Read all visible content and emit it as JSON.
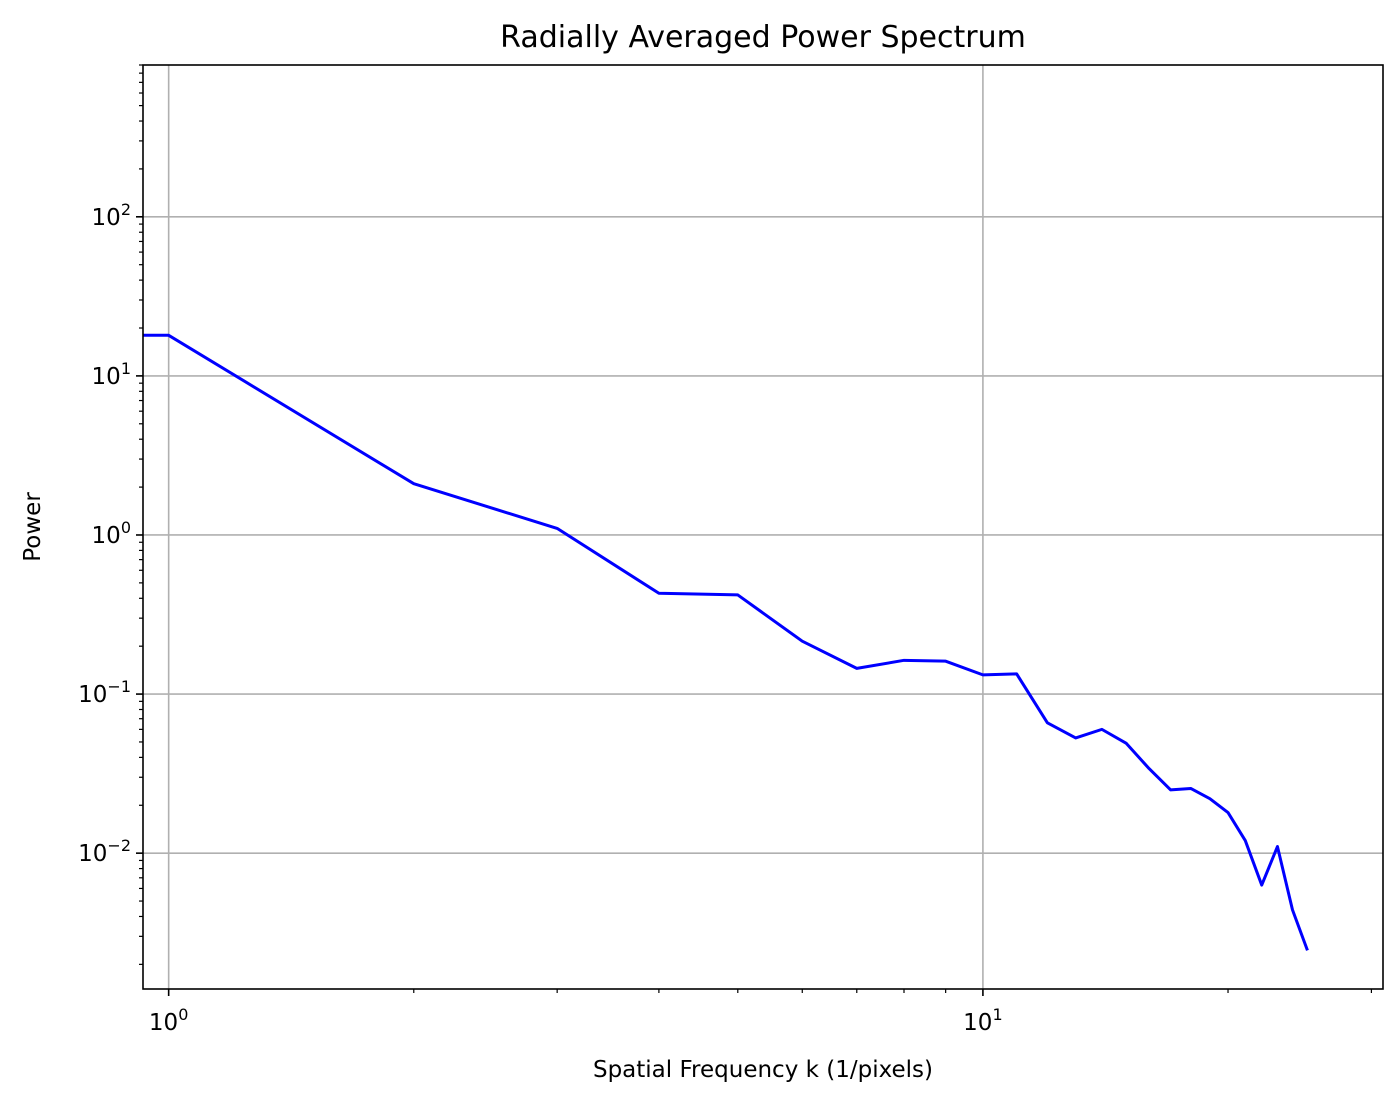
{
  "chart_data": {
    "type": "line",
    "title": "Radially Averaged Power Spectrum",
    "xlabel": "Spatial Frequency k (1/pixels)",
    "ylabel": "Power",
    "x_scale": "log",
    "y_scale": "log",
    "xlim": [
      0.93,
      31
    ],
    "ylim": [
      0.0014,
      900
    ],
    "grid": true,
    "line_color": "#0000ff",
    "x_ticks": [
      {
        "value": 1,
        "base": "10",
        "exp": "0"
      },
      {
        "value": 10,
        "base": "10",
        "exp": "1"
      }
    ],
    "y_ticks": [
      {
        "value": 0.01,
        "base": "10",
        "exp": "−2"
      },
      {
        "value": 0.1,
        "base": "10",
        "exp": "−1"
      },
      {
        "value": 1,
        "base": "10",
        "exp": "0"
      },
      {
        "value": 10,
        "base": "10",
        "exp": "1"
      },
      {
        "value": 100,
        "base": "10",
        "exp": "2"
      }
    ],
    "series": [
      {
        "x": [
          0,
          1,
          2,
          3,
          4,
          5,
          6,
          7,
          8,
          9,
          10,
          11,
          12,
          13,
          14,
          15,
          16,
          17,
          18,
          19,
          20,
          21,
          22,
          23,
          24,
          25
        ],
        "values": [
          18,
          18,
          2.1,
          1.1,
          0.43,
          0.42,
          0.215,
          0.145,
          0.163,
          0.161,
          0.132,
          0.134,
          0.066,
          0.053,
          0.06,
          0.049,
          0.034,
          0.025,
          0.0255,
          0.022,
          0.018,
          0.012,
          0.0063,
          0.011,
          0.0044,
          0.0025
        ]
      }
    ]
  }
}
